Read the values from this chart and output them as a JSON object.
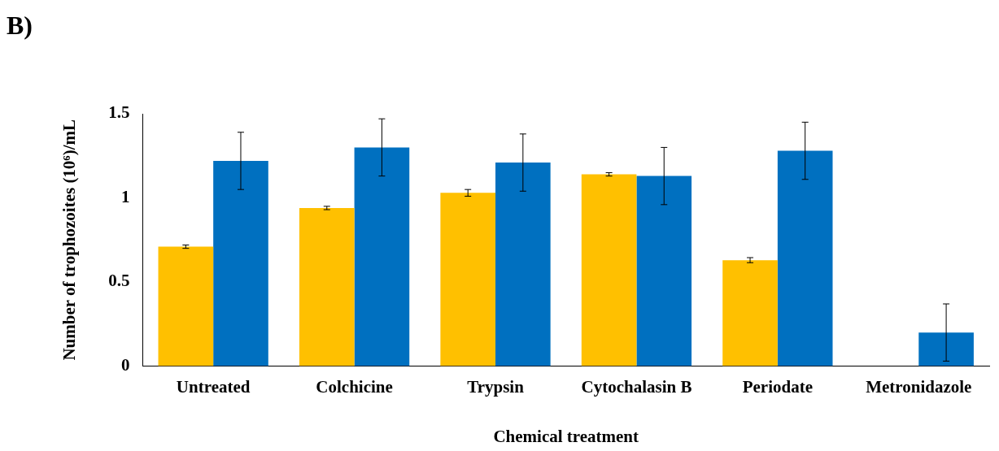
{
  "chart_data": {
    "type": "bar",
    "xlabel": "Chemical treatment",
    "ylabel": "Number of trophozoites (10⁶)/mL",
    "annotations": [
      "B)"
    ],
    "categories": [
      "Untreated",
      "Colchicine",
      "Trypsin",
      "Cytochalasin B",
      "Periodate",
      "Metronidazole"
    ],
    "series": [
      {
        "color": "#ffc000",
        "values": [
          0.71,
          0.94,
          1.03,
          1.14,
          0.63,
          null
        ],
        "errors": [
          0.01,
          0.01,
          0.02,
          0.01,
          0.015,
          null
        ]
      },
      {
        "color": "#0070c0",
        "values": [
          1.22,
          1.3,
          1.21,
          1.13,
          1.28,
          0.2
        ],
        "errors": [
          0.17,
          0.17,
          0.17,
          0.17,
          0.17,
          0.17
        ]
      }
    ],
    "ylim": [
      0,
      1.5
    ],
    "yticks": [
      0,
      0.5,
      1,
      1.5
    ],
    "grid": false,
    "legend": false
  }
}
